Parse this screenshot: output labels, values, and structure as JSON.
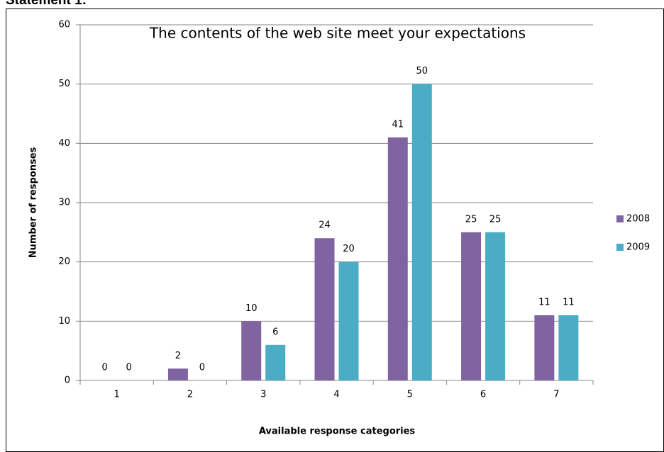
{
  "heading": "Statement 1:",
  "chart_data": {
    "type": "bar",
    "title": "The contents of the web site meet your expectations",
    "x_label": "Available response categories",
    "y_label": "Number of responses",
    "categories": [
      "1",
      "2",
      "3",
      "4",
      "5",
      "6",
      "7"
    ],
    "series": [
      {
        "name": "2008",
        "color": "#8064a2",
        "values": [
          0,
          2,
          10,
          24,
          41,
          25,
          11
        ]
      },
      {
        "name": "2009",
        "color": "#4bacc6",
        "values": [
          0,
          0,
          6,
          20,
          50,
          25,
          11
        ]
      }
    ],
    "ylim": [
      0,
      60
    ],
    "yticks": [
      0,
      10,
      20,
      30,
      40,
      50,
      60
    ],
    "grid": true,
    "legend": "right"
  }
}
